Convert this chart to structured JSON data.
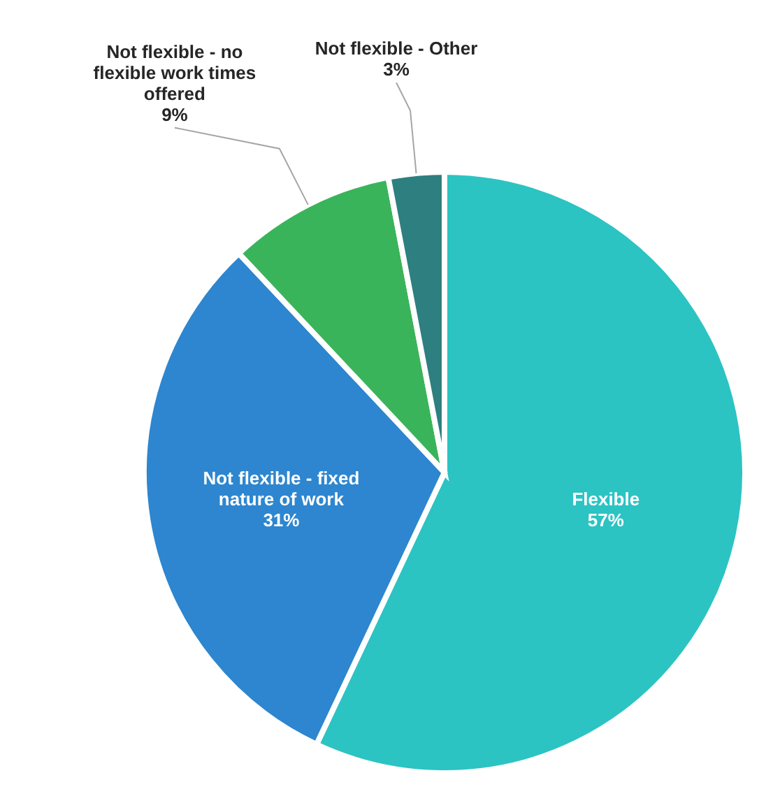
{
  "chart_data": {
    "type": "pie",
    "categories": [
      "Flexible",
      "Not flexible - fixed nature of work",
      "Not flexible - no flexible work times offered",
      "Not flexible - Other"
    ],
    "values": [
      57,
      31,
      9,
      3
    ],
    "value_labels": [
      "57%",
      "31%",
      "9%",
      "3%"
    ],
    "colors": [
      "#2cc3c3",
      "#2d86cf",
      "#3ab45a",
      "#2e7f80"
    ]
  }
}
